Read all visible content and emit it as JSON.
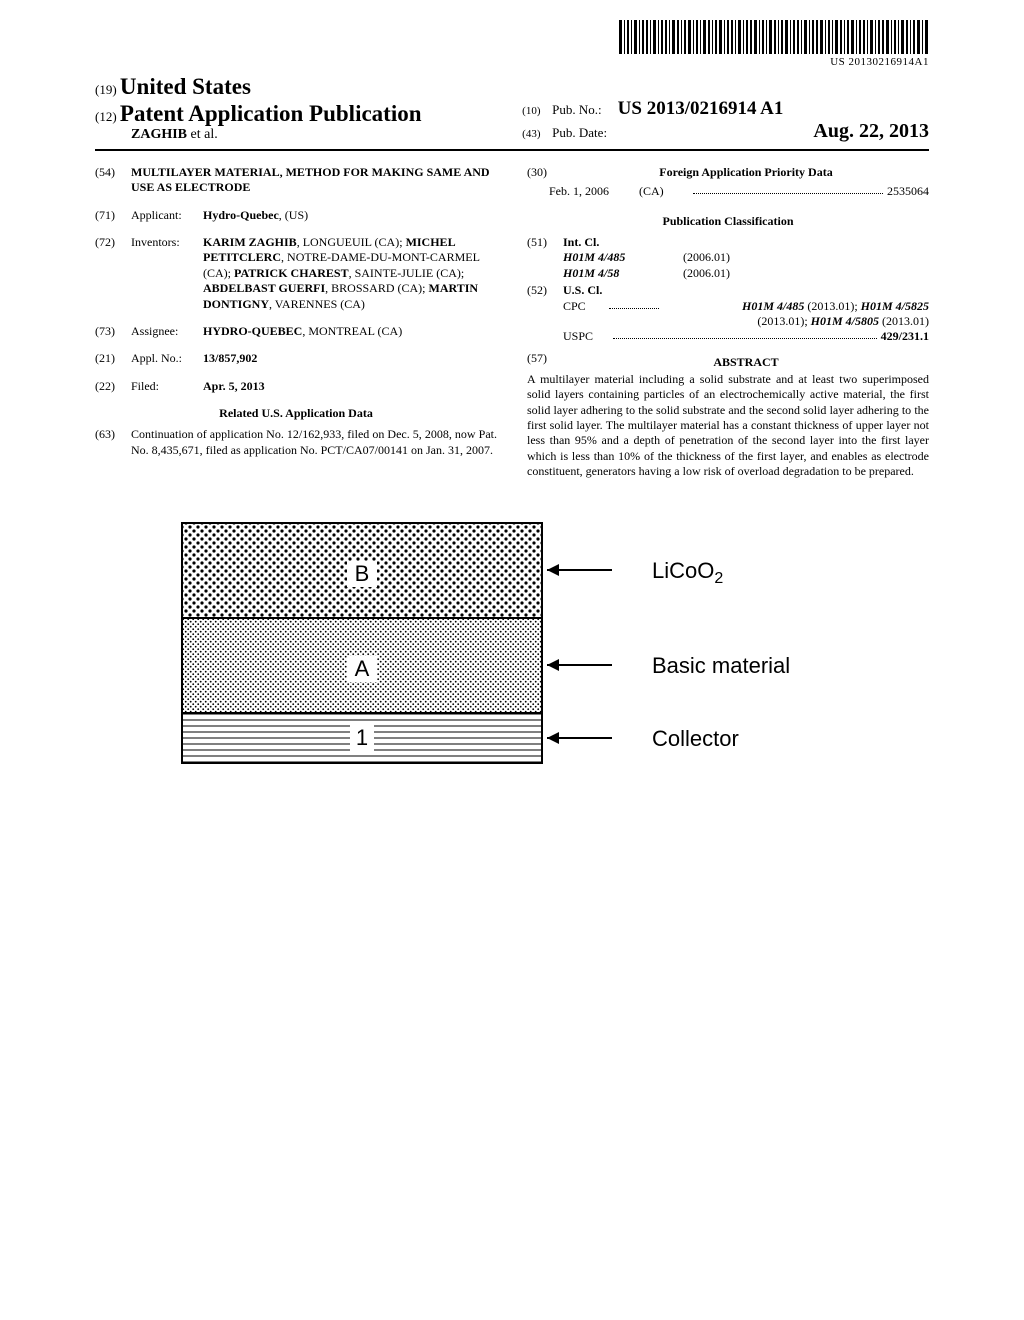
{
  "barcode_text": "US 20130216914A1",
  "header": {
    "paren19": "(19)",
    "country": "United States",
    "paren12": "(12)",
    "pubtype": "Patent Application Publication",
    "authors_surname": "ZAGHIB",
    "authors_suffix": "et al.",
    "paren10": "(10)",
    "pubno_label": "Pub. No.:",
    "pubno_value": "US 2013/0216914 A1",
    "paren43": "(43)",
    "pubdate_label": "Pub. Date:",
    "pubdate_value": "Aug. 22, 2013"
  },
  "fields": {
    "f54": {
      "num": "(54)",
      "title": "MULTILAYER MATERIAL, METHOD FOR MAKING SAME AND USE AS ELECTRODE"
    },
    "f71": {
      "num": "(71)",
      "label": "Applicant:",
      "value_bold": "Hydro-Quebec",
      "value_rest": ", (US)"
    },
    "f72": {
      "num": "(72)",
      "label": "Inventors:",
      "inventors": [
        {
          "name": "KARIM ZAGHIB",
          "loc": ", LONGUEUIL (CA); "
        },
        {
          "name": "MICHEL PETITCLERC",
          "loc": ", NOTRE-DAME-DU-MONT-CARMEL (CA); "
        },
        {
          "name": "PATRICK CHAREST",
          "loc": ", SAINTE-JULIE (CA); "
        },
        {
          "name": "ABDELBAST GUERFI",
          "loc": ", BROSSARD (CA); "
        },
        {
          "name": "MARTIN DONTIGNY",
          "loc": ", VARENNES (CA)"
        }
      ]
    },
    "f73": {
      "num": "(73)",
      "label": "Assignee:",
      "value_bold": "HYDRO-QUEBEC",
      "value_rest": ", MONTREAL (CA)"
    },
    "f21": {
      "num": "(21)",
      "label": "Appl. No.:",
      "value_bold": "13/857,902"
    },
    "f22": {
      "num": "(22)",
      "label": "Filed:",
      "value_bold": "Apr. 5, 2013"
    },
    "related_heading": "Related U.S. Application Data",
    "f63": {
      "num": "(63)",
      "text": "Continuation of application No. 12/162,933, filed on Dec. 5, 2008, now Pat. No. 8,435,671, filed as application No. PCT/CA07/00141 on Jan. 31, 2007."
    },
    "f30": {
      "num": "(30)",
      "heading": "Foreign Application Priority Data",
      "date": "Feb. 1, 2006",
      "cc": "(CA)",
      "appnum": "2535064"
    },
    "pubclass_heading": "Publication Classification",
    "f51": {
      "num": "(51)",
      "label": "Int. Cl.",
      "rows": [
        {
          "code": "H01M 4/485",
          "year": "(2006.01)"
        },
        {
          "code": "H01M 4/58",
          "year": "(2006.01)"
        }
      ]
    },
    "f52": {
      "num": "(52)",
      "label": "U.S. Cl.",
      "cpc_lead": "CPC",
      "cpc_codes_1": "H01M 4/485",
      "cpc_year_1": " (2013.01); ",
      "cpc_codes_2": "H01M 4/5825",
      "cpc_line2_year": "(2013.01); ",
      "cpc_codes_3": "H01M 4/5805",
      "cpc_year_3": " (2013.01)",
      "uspc_lead": "USPC",
      "uspc_val": "429/231.1"
    },
    "f57": {
      "num": "(57)",
      "heading": "ABSTRACT"
    },
    "abstract": "A multilayer material including a solid substrate and at least two superimposed solid layers containing particles of an electrochemically active material, the first solid layer adhering to the solid substrate and the second solid layer adhering to the first solid layer. The multilayer material has a constant thickness of upper layer not less than 95% and a depth of penetration of the second layer into the first layer which is less than 10% of the thickness of the first layer, and enables as electrode constituent, generators having a low risk of overload degradation to be prepared."
  },
  "figure": {
    "label_B": "B",
    "label_A": "A",
    "label_1": "1",
    "annot_B": "LiCoO₂",
    "annot_A": "Basic material",
    "annot_1": "Collector"
  }
}
